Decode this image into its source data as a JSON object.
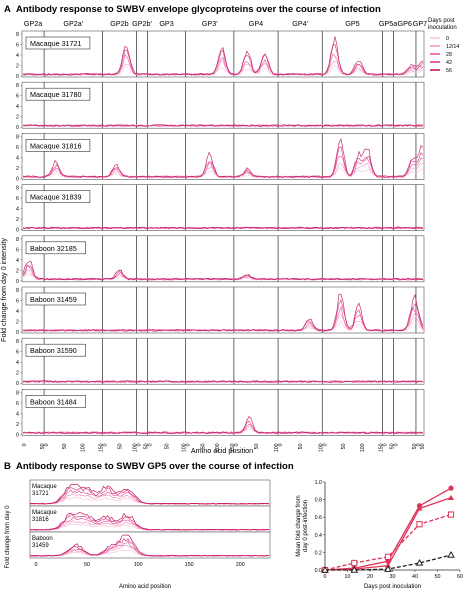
{
  "panel_a": {
    "letter": "A",
    "title": "Antibody response to SWBV envelope glycoproteins over the course of infection",
    "ylabel": "Fold change from day 0 intensity",
    "xlabel": "Amino acid position",
    "proteins": [
      "GP2a",
      "GP2a'",
      "GP2b",
      "GP2b'",
      "GP3",
      "GP3'",
      "GP4",
      "GP4'",
      "GP5",
      "GP5a",
      "GP6",
      "GP7"
    ],
    "legend_title": "Days post\ninoculation",
    "legend": [
      {
        "label": "0",
        "color": "#f7c8dc"
      },
      {
        "label": "12/14",
        "color": "#f49ac1"
      },
      {
        "label": "28",
        "color": "#e95aa1"
      },
      {
        "label": "42",
        "color": "#d83a8a"
      },
      {
        "label": "56",
        "color": "#c2185b"
      }
    ],
    "y_ticks": [
      "0",
      "2",
      "4",
      "6",
      "8"
    ],
    "animals": [
      "Macaque 31721",
      "Macaque 31780",
      "Macaque 31816",
      "Macaque 31839",
      "Baboon 32185",
      "Baboon 31459",
      "Baboon 31590",
      "Baboon 31484"
    ]
  },
  "panel_b": {
    "letter": "B",
    "title": "Antibody response to SWBV GP5 over the course of infection",
    "ylabel": "Fold change from day 0",
    "xlabel": "Amino acid position",
    "animals": [
      "Macaque\n31721",
      "Macaque\n31816",
      "Baboon\n31459"
    ],
    "x_ticks": [
      "0",
      "50",
      "100",
      "150",
      "200"
    ],
    "right_ylabel": "Mean fold change from\nday 0 post-infection",
    "right_xlabel": "Days post inoculation"
  },
  "chart_data": [
    {
      "type": "line",
      "title": "Antibody response to SWBV envelope glycoproteins over the course of infection",
      "xlabel": "Amino acid position",
      "ylabel": "Fold change from day 0 intensity",
      "ylim": [
        0,
        8
      ],
      "series": [
        {
          "name": "Macaque 31721",
          "peaks": [
            [
              "GP2b",
              0.7,
              6
            ],
            [
              "GP3'",
              0.75,
              5.5
            ],
            [
              "GP4",
              0.3,
              5
            ],
            [
              "GP4",
              0.7,
              4.5
            ],
            [
              "GP5",
              0.2,
              7
            ],
            [
              "GP5",
              0.6,
              3
            ],
            [
              "GP6",
              0.8,
              2
            ],
            [
              "GP7",
              0.8,
              3
            ]
          ]
        },
        {
          "name": "Macaque 31780",
          "peaks": []
        },
        {
          "name": "Macaque 31816",
          "peaks": [
            [
              "GP2a'",
              0.2,
              3
            ],
            [
              "GP2b",
              0.4,
              2.5
            ],
            [
              "GP3'",
              0.5,
              4.5
            ],
            [
              "GP4",
              0.3,
              1.5
            ],
            [
              "GP5",
              0.3,
              7
            ],
            [
              "GP5",
              0.6,
              4.5
            ],
            [
              "GP5",
              0.75,
              5.5
            ],
            [
              "GP6",
              0.85,
              4
            ],
            [
              "GP7",
              0.8,
              6
            ]
          ]
        },
        {
          "name": "Macaque 31839",
          "peaks": []
        },
        {
          "name": "Baboon 32185",
          "peaks": [
            [
              "GP2a",
              0.3,
              4
            ],
            [
              "GP2b",
              0.5,
              2
            ],
            [
              "GP4",
              0.3,
              1
            ]
          ]
        },
        {
          "name": "Baboon 31459",
          "peaks": [
            [
              "GP4'",
              0.7,
              2.5
            ],
            [
              "GP5",
              0.3,
              7
            ],
            [
              "GP5",
              0.6,
              5
            ],
            [
              "GP6",
              0.9,
              6
            ],
            [
              "GP7",
              0.2,
              2
            ]
          ]
        },
        {
          "name": "Baboon 31590",
          "peaks": []
        },
        {
          "name": "Baboon 31484",
          "peaks": [
            [
              "GP4",
              0.35,
              3
            ]
          ]
        }
      ]
    },
    {
      "type": "line",
      "title": "Antibody response to SWBV GP5 over the course of infection",
      "xlabel": "Amino acid position",
      "ylabel": "Fold change from day 0",
      "series": [
        {
          "name": "Macaque 31721",
          "peaks": [
            [
              40,
              0.8
            ],
            [
              55,
              0.7
            ],
            [
              75,
              0.8
            ],
            [
              95,
              0.75
            ]
          ]
        },
        {
          "name": "Macaque 31816",
          "peaks": [
            [
              40,
              0.7
            ],
            [
              55,
              0.65
            ],
            [
              75,
              0.6
            ],
            [
              95,
              0.7
            ]
          ]
        },
        {
          "name": "Baboon 31459",
          "peaks": [
            [
              45,
              0.5
            ],
            [
              80,
              0.4
            ],
            [
              95,
              0.9
            ]
          ]
        }
      ]
    },
    {
      "type": "line",
      "xlabel": "Days post inoculation",
      "ylabel": "Mean fold change from day 0 post-infection",
      "ylim": [
        0,
        1.0
      ],
      "xlim": [
        0,
        60
      ],
      "x_ticks": [
        0,
        10,
        20,
        30,
        40,
        50,
        60
      ],
      "y_ticks": [
        0.0,
        0.2,
        0.4,
        0.6,
        0.8,
        1.0
      ],
      "series": [
        {
          "marker": "circle-filled",
          "color": "#e0335a",
          "dash": false,
          "x": [
            0,
            13,
            28,
            42,
            56
          ],
          "y": [
            0,
            0.02,
            0.1,
            0.73,
            0.93
          ]
        },
        {
          "marker": "triangle-filled",
          "color": "#e0335a",
          "dash": false,
          "x": [
            0,
            13,
            28,
            42,
            56
          ],
          "y": [
            0,
            0.01,
            0.05,
            0.7,
            0.82
          ]
        },
        {
          "marker": "square-open",
          "color": "#e0335a",
          "dash": true,
          "x": [
            0,
            13,
            28,
            42,
            56
          ],
          "y": [
            0,
            0.08,
            0.15,
            0.52,
            0.63
          ]
        },
        {
          "marker": "triangle-open",
          "color": "#222222",
          "dash": true,
          "x": [
            0,
            13,
            28,
            42,
            56
          ],
          "y": [
            0,
            0,
            0.01,
            0.08,
            0.17
          ]
        }
      ]
    }
  ]
}
